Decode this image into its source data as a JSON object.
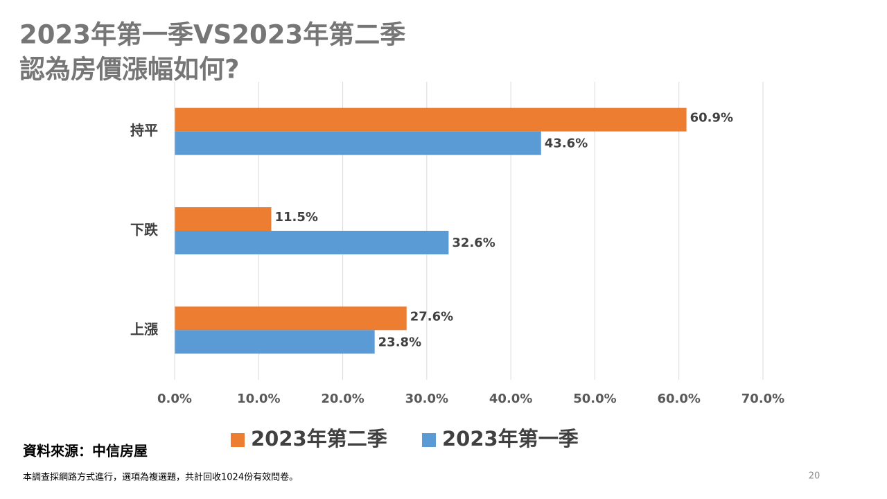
{
  "chart_data": {
    "type": "bar",
    "orientation": "horizontal",
    "title": [
      "2023年第一季VS2023年第二季",
      "認為房價漲幅如何?"
    ],
    "categories": [
      "持平",
      "下跌",
      "上漲"
    ],
    "series": [
      {
        "name": "2023年第二季",
        "color": "#ed7d31",
        "values": [
          60.9,
          11.5,
          27.6
        ],
        "value_labels": [
          "60.9%",
          "11.5%",
          "27.6%"
        ]
      },
      {
        "name": "2023年第一季",
        "color": "#5b9bd5",
        "values": [
          43.6,
          32.6,
          23.8
        ],
        "value_labels": [
          "43.6%",
          "32.6%",
          "23.8%"
        ]
      }
    ],
    "xlim": [
      0,
      70
    ],
    "xticks": [
      {
        "value": 0,
        "label": "0.0%"
      },
      {
        "value": 10,
        "label": "10.0%"
      },
      {
        "value": 20,
        "label": "20.0%"
      },
      {
        "value": 30,
        "label": "30.0%"
      },
      {
        "value": 40,
        "label": "40.0%"
      },
      {
        "value": 50,
        "label": "50.0%"
      },
      {
        "value": 60,
        "label": "60.0%"
      },
      {
        "value": 70,
        "label": "70.0%"
      }
    ],
    "grid": true
  },
  "source": "資料來源：中信房屋",
  "note": "本調查採網路方式進行，選項為複選題，共計回收1024份有效問卷。",
  "page_number": "20"
}
